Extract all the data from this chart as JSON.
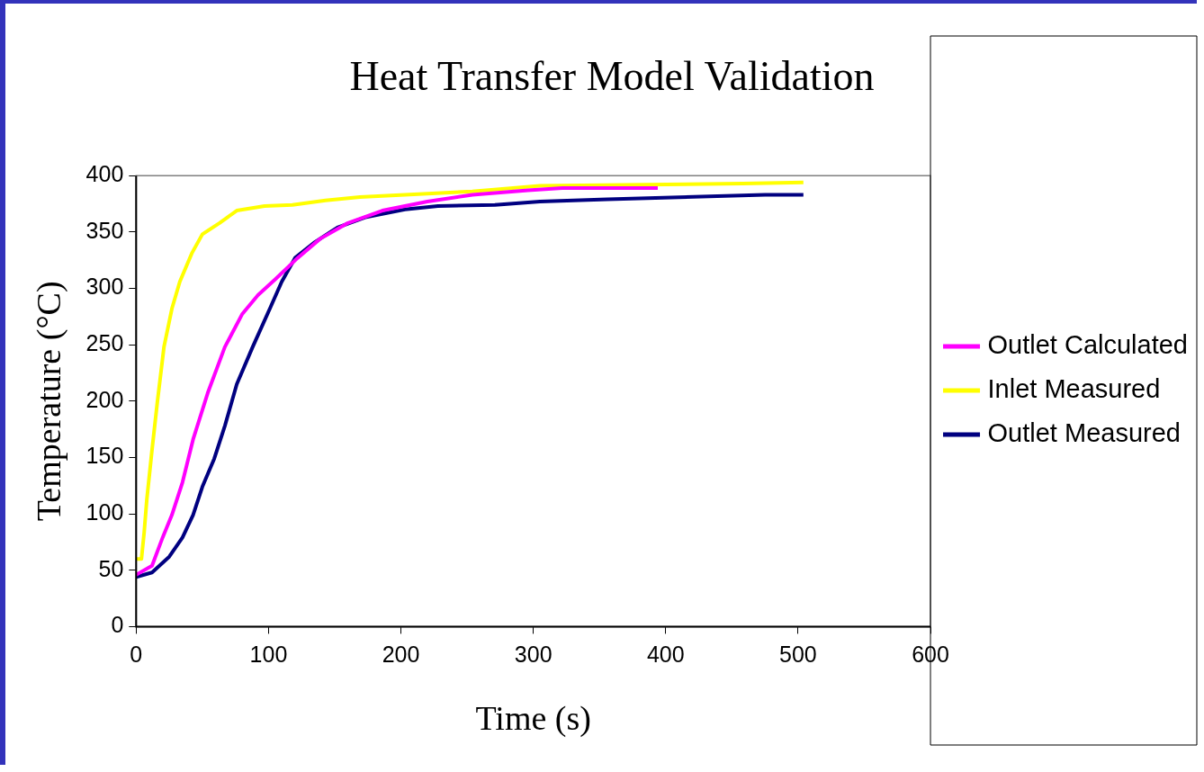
{
  "chart_data": {
    "type": "line",
    "title": "Heat Transfer Model Validation",
    "xlabel": "Time (s)",
    "ylabel": "Temperature (°C)",
    "xlim": [
      0,
      600
    ],
    "xticks": [
      0,
      100,
      200,
      300,
      400,
      500,
      600
    ],
    "ylim": [
      0,
      400
    ],
    "yticks": [
      0,
      50,
      100,
      150,
      200,
      250,
      300,
      350,
      400
    ],
    "grid": false,
    "legend": "right",
    "marker": "none",
    "line_style": "solid",
    "series": [
      {
        "name": "Outlet Calculated",
        "color": "#ff00ff",
        "x": [
          0,
          12,
          20,
          27,
          35,
          43,
          54,
          67,
          80,
          92,
          105,
          122,
          139,
          160,
          186,
          220,
          254,
          296,
          322,
          394
        ],
        "values": [
          46,
          54,
          79,
          99,
          128,
          166,
          207,
          248,
          277,
          294,
          308,
          327,
          344,
          358,
          369,
          377,
          383,
          387,
          389,
          389
        ]
      },
      {
        "name": "Inlet Measured",
        "color": "#ffff00",
        "x": [
          0,
          4,
          6,
          8,
          12,
          16,
          21,
          27,
          33,
          42,
          50,
          63,
          76,
          97,
          118,
          143,
          169,
          203,
          254,
          305,
          458,
          504
        ],
        "values": [
          60,
          60,
          83,
          112,
          157,
          199,
          248,
          282,
          306,
          331,
          348,
          358,
          369,
          373,
          374,
          378,
          381,
          383,
          386,
          391,
          393,
          394
        ]
      },
      {
        "name": "Outlet Measured",
        "color": "#000080",
        "x": [
          0,
          12,
          25,
          35,
          43,
          50,
          59,
          67,
          76,
          88,
          101,
          110,
          120,
          135,
          152,
          173,
          203,
          228,
          271,
          305,
          356,
          475,
          504
        ],
        "values": [
          44,
          48,
          62,
          79,
          99,
          124,
          149,
          178,
          215,
          248,
          282,
          306,
          327,
          341,
          354,
          363,
          370,
          373,
          374,
          377,
          379,
          383,
          383
        ]
      }
    ]
  }
}
